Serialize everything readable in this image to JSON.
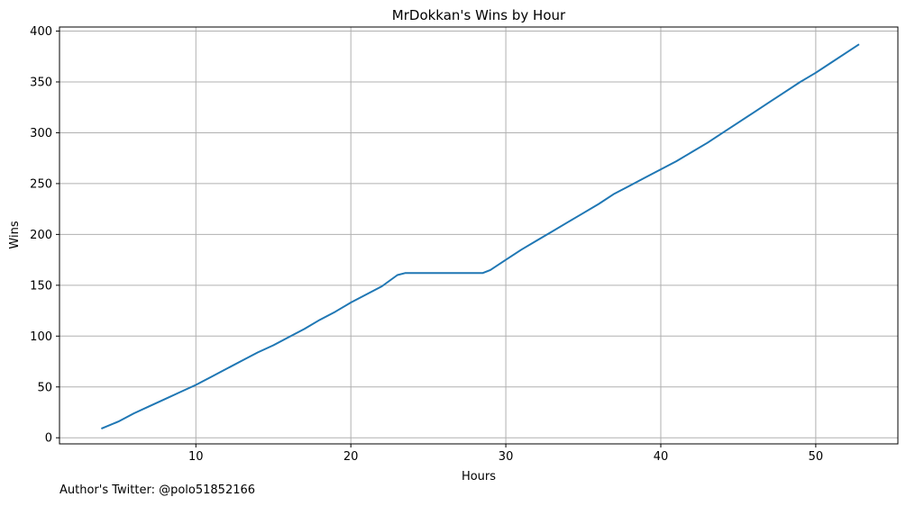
{
  "chart_data": {
    "type": "line",
    "title": "MrDokkan's Wins by Hour",
    "xlabel": "Hours",
    "ylabel": "Wins",
    "xlim": [
      1.2,
      55.3
    ],
    "ylim": [
      -6,
      404
    ],
    "xticks": [
      10,
      20,
      30,
      40,
      50
    ],
    "yticks": [
      0,
      50,
      100,
      150,
      200,
      250,
      300,
      350,
      400
    ],
    "grid": true,
    "line_color": "#1f77b4",
    "series": [
      {
        "name": "Wins",
        "x": [
          3.9,
          5,
          6,
          7,
          8,
          9,
          10,
          11,
          12,
          13,
          14,
          15,
          16,
          17,
          18,
          19,
          20,
          21,
          22,
          23,
          23.5,
          24,
          25,
          26,
          27,
          28,
          28.5,
          29,
          30,
          31,
          32,
          33,
          34,
          35,
          36,
          37,
          38,
          39,
          40,
          41,
          42,
          43,
          44,
          45,
          46,
          47,
          48,
          49,
          50,
          51,
          52,
          52.8
        ],
        "y": [
          9,
          16,
          24,
          31,
          38,
          45,
          52,
          60,
          68,
          76,
          84,
          91,
          99,
          107,
          116,
          124,
          133,
          141,
          149,
          160,
          162,
          162,
          162,
          162,
          162,
          162,
          162,
          165,
          175,
          185,
          194,
          203,
          212,
          221,
          230,
          240,
          248,
          256,
          264,
          272,
          281,
          290,
          300,
          310,
          320,
          330,
          340,
          350,
          359,
          369,
          379,
          387
        ]
      }
    ]
  },
  "footnote": "Author's Twitter: @polo51852166"
}
